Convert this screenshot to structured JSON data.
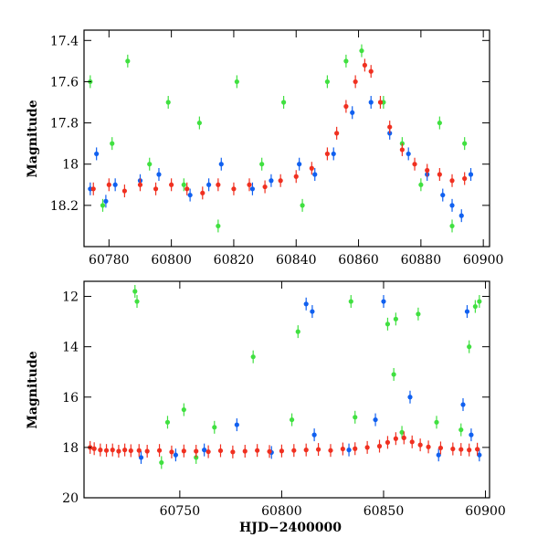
{
  "colors": {
    "blue": "#1060f0",
    "green": "#40e040",
    "red": "#f03020",
    "black": "#000000"
  },
  "chart_data": [
    {
      "type": "scatter",
      "panel": "top",
      "ylabel": "Magnitude",
      "xlabel": "",
      "xlim": [
        60772,
        60902
      ],
      "ylim": [
        18.4,
        17.35
      ],
      "x_ticks": [
        60780,
        60800,
        60820,
        60840,
        60860,
        60880,
        60900
      ],
      "y_ticks": [
        17.4,
        17.6,
        17.8,
        18,
        18.2
      ],
      "y_tick_labels": [
        "17.4",
        "17.6",
        "17.8",
        "18",
        "18.2"
      ],
      "inverted_y": true,
      "error_bars": true,
      "series": [
        {
          "color": "blue",
          "x": [
            60774,
            60776,
            60779,
            60782,
            60790,
            60796,
            60806,
            60812,
            60816,
            60826,
            60832,
            60841,
            60846,
            60852,
            60858,
            60864,
            60870,
            60876,
            60882,
            60887,
            60890,
            60893,
            60896
          ],
          "y": [
            18.12,
            17.95,
            18.18,
            18.1,
            18.08,
            18.05,
            18.15,
            18.1,
            18.0,
            18.12,
            18.08,
            18.0,
            18.05,
            17.95,
            17.75,
            17.7,
            17.85,
            17.95,
            18.05,
            18.15,
            18.2,
            18.25,
            18.05
          ]
        },
        {
          "color": "green",
          "x": [
            60774,
            60778,
            60781,
            60786,
            60793,
            60799,
            60804,
            60809,
            60815,
            60821,
            60829,
            60836,
            60842,
            60850,
            60856,
            60861,
            60868,
            60874,
            60880,
            60886,
            60890,
            60894
          ],
          "y": [
            17.6,
            18.2,
            17.9,
            17.5,
            18.0,
            17.7,
            18.1,
            17.8,
            18.3,
            17.6,
            18.0,
            17.7,
            18.2,
            17.6,
            17.5,
            17.45,
            17.7,
            17.9,
            18.1,
            17.8,
            18.3,
            17.9
          ]
        },
        {
          "color": "red",
          "x": [
            60775,
            60780,
            60785,
            60790,
            60795,
            60800,
            60805,
            60810,
            60815,
            60820,
            60825,
            60830,
            60835,
            60840,
            60845,
            60850,
            60853,
            60856,
            60859,
            60862,
            60864,
            60867,
            60870,
            60874,
            60878,
            60882,
            60886,
            60890,
            60894
          ],
          "y": [
            18.12,
            18.1,
            18.13,
            18.1,
            18.12,
            18.1,
            18.12,
            18.14,
            18.1,
            18.12,
            18.1,
            18.11,
            18.08,
            18.06,
            18.02,
            17.95,
            17.85,
            17.72,
            17.6,
            17.52,
            17.55,
            17.7,
            17.82,
            17.93,
            18.0,
            18.03,
            18.05,
            18.08,
            18.07
          ]
        }
      ]
    },
    {
      "type": "scatter",
      "panel": "bottom",
      "ylabel": "Magnitude",
      "xlabel": "HJD−2400000",
      "xlim": [
        60703,
        60902
      ],
      "ylim": [
        20,
        11.4
      ],
      "x_ticks": [
        60750,
        60800,
        60850,
        60900
      ],
      "y_ticks": [
        12,
        14,
        16,
        18,
        20
      ],
      "y_tick_labels": [
        "12",
        "14",
        "16",
        "18",
        "20"
      ],
      "inverted_y": true,
      "error_bars": true,
      "series": [
        {
          "color": "green",
          "x": [
            60728,
            60729,
            60741,
            60744,
            60752,
            60758,
            60767,
            60786,
            60805,
            60808,
            60834,
            60836,
            60852,
            60855,
            60856,
            60859,
            60867,
            60876,
            60888,
            60892,
            60895,
            60897
          ],
          "y": [
            11.8,
            12.2,
            18.6,
            17.0,
            16.5,
            18.4,
            17.2,
            14.4,
            16.9,
            13.4,
            12.2,
            16.8,
            13.1,
            15.1,
            12.9,
            17.4,
            12.7,
            17.0,
            17.3,
            14.0,
            12.4,
            12.2
          ]
        },
        {
          "color": "blue",
          "x": [
            60731,
            60748,
            60762,
            60778,
            60795,
            60812,
            60815,
            60816,
            60833,
            60846,
            60850,
            60863,
            60877,
            60889,
            60891,
            60893,
            60897
          ],
          "y": [
            18.4,
            18.3,
            18.1,
            17.1,
            18.2,
            12.3,
            12.6,
            17.5,
            18.1,
            16.9,
            12.2,
            16.0,
            18.3,
            16.3,
            12.6,
            17.5,
            18.3
          ]
        },
        {
          "color": "red",
          "x": [
            60706,
            60708,
            60711,
            60714,
            60717,
            60720,
            60723,
            60726,
            60730,
            60734,
            60740,
            60746,
            60752,
            60758,
            60764,
            60770,
            60776,
            60782,
            60788,
            60794,
            60800,
            60806,
            60812,
            60818,
            60824,
            60830,
            60836,
            60842,
            60848,
            60852,
            60856,
            60860,
            60864,
            60868,
            60872,
            60878,
            60884,
            60888,
            60892,
            60896
          ],
          "y": [
            18.0,
            18.05,
            18.1,
            18.12,
            18.1,
            18.15,
            18.1,
            18.13,
            18.12,
            18.15,
            18.12,
            18.18,
            18.14,
            18.15,
            18.17,
            18.13,
            18.18,
            18.15,
            18.12,
            18.16,
            18.14,
            18.12,
            18.1,
            18.08,
            18.12,
            18.06,
            18.05,
            18.0,
            17.95,
            17.8,
            17.65,
            17.62,
            17.78,
            17.9,
            17.98,
            18.02,
            18.06,
            18.08,
            18.1,
            18.07
          ]
        }
      ]
    }
  ]
}
